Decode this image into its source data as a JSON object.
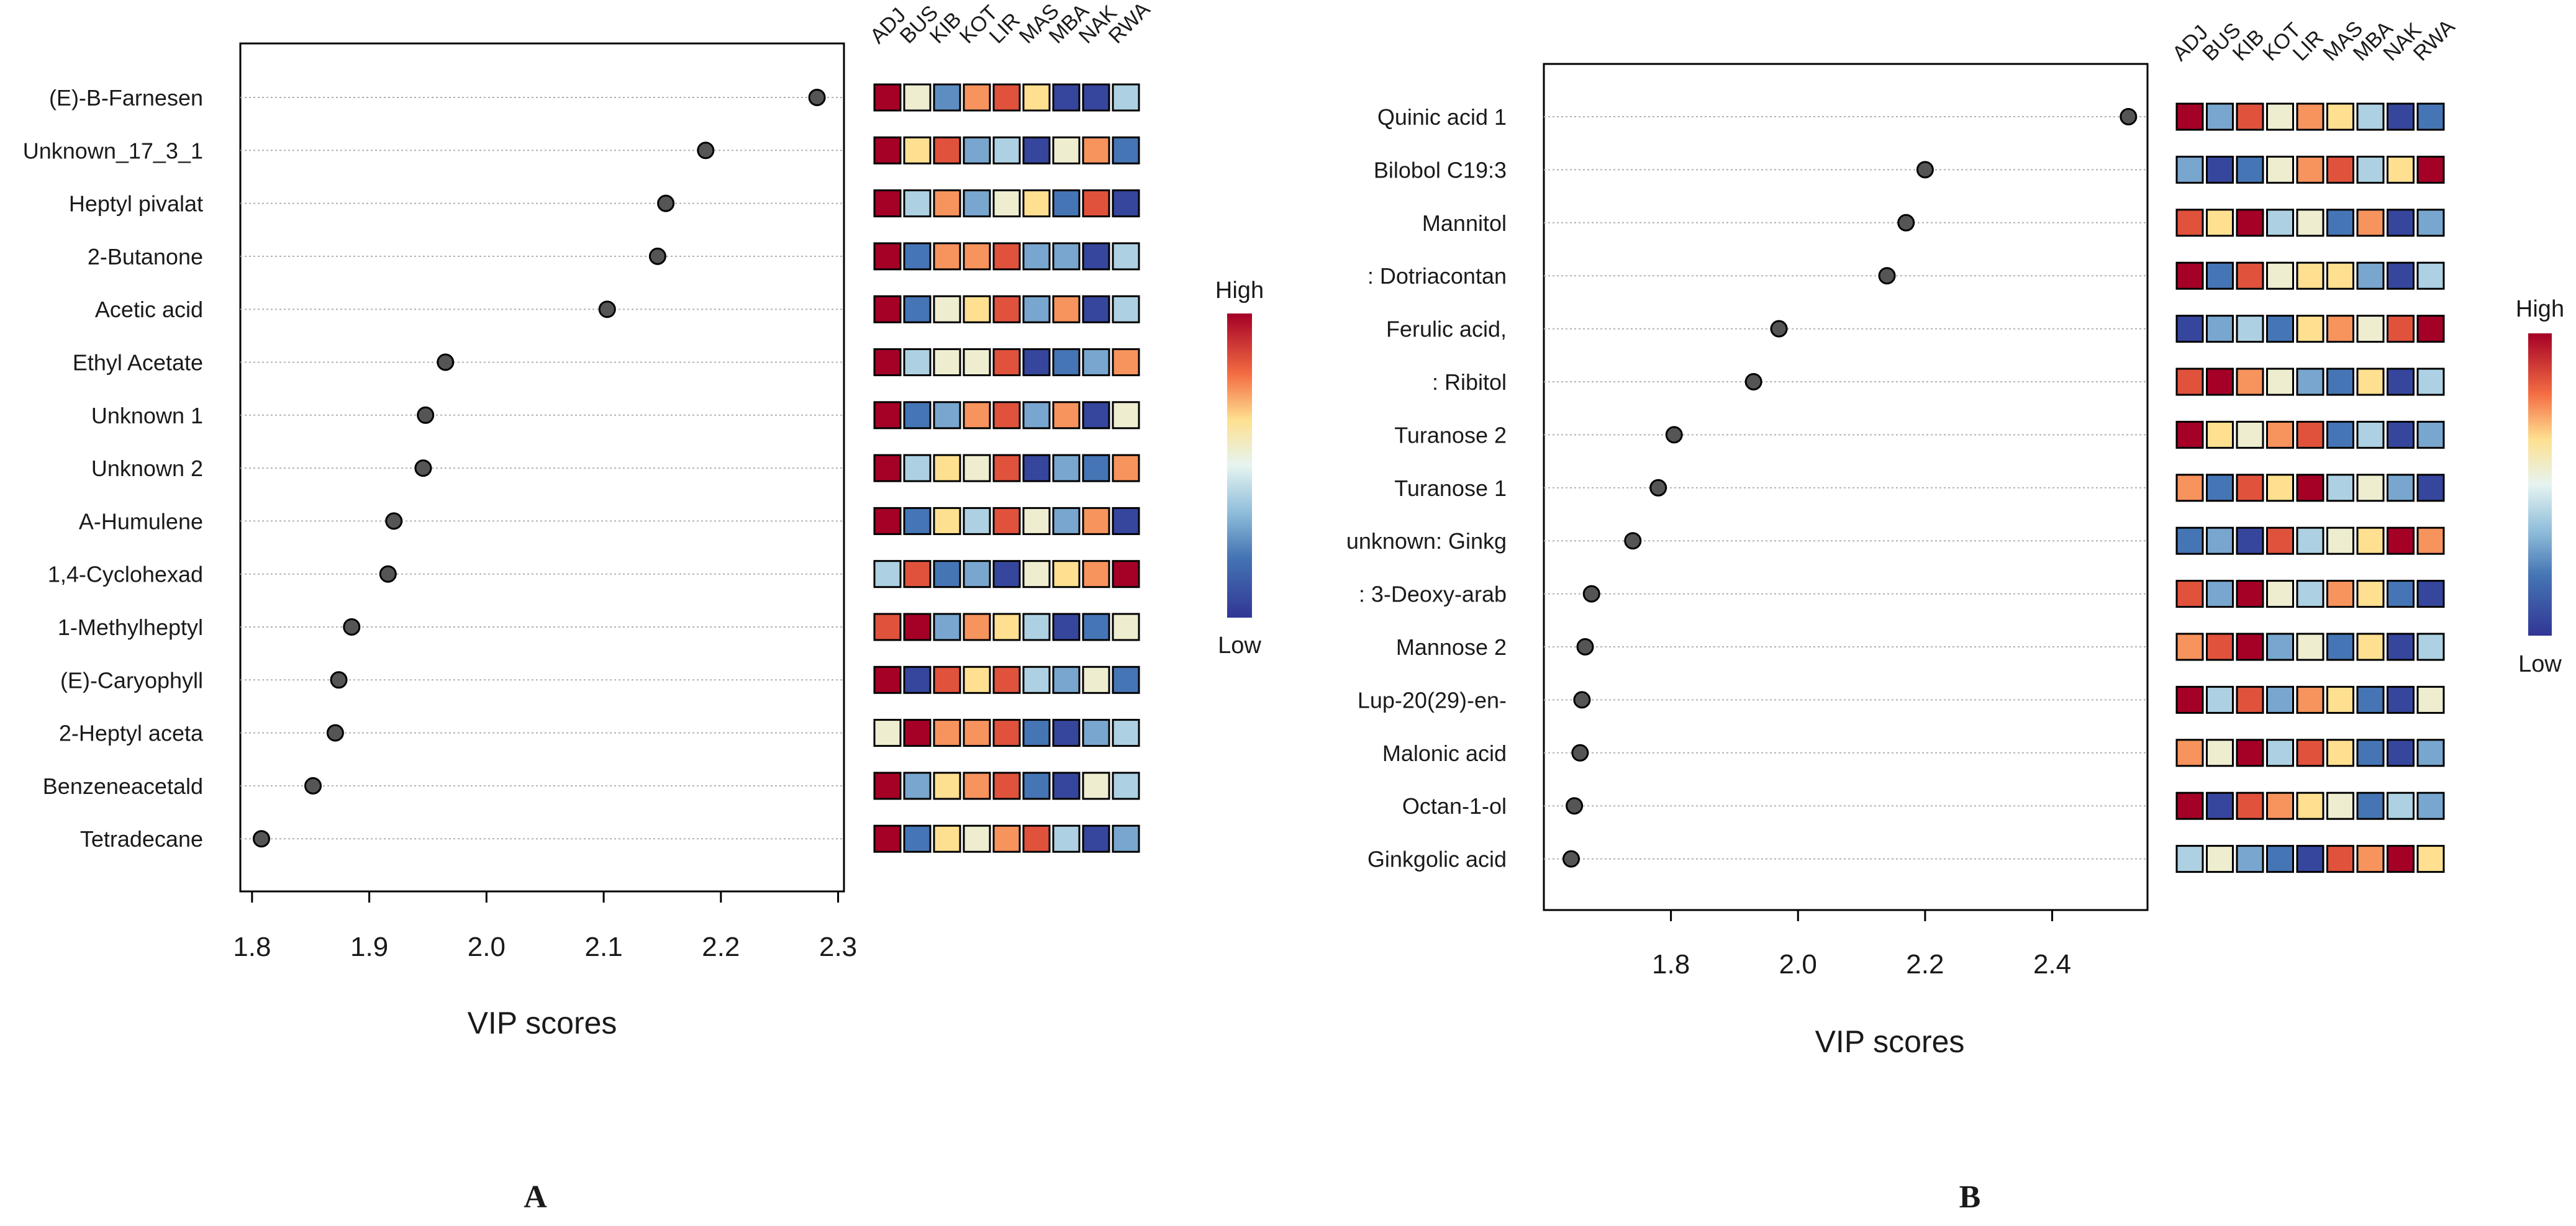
{
  "colors": {
    "high": "#a50026",
    "mid": "#eee8c8",
    "low": "#313695",
    "dot": "#555555",
    "gridline": "#b0b0b0",
    "frame": "#000000"
  },
  "chart_data": [
    {
      "type": "scatter",
      "panel_label": "A",
      "xlabel": "VIP scores",
      "ylabel": "",
      "xlim": [
        1.79,
        2.305
      ],
      "xticks": [
        1.8,
        1.9,
        2.0,
        2.1,
        2.2,
        2.3
      ],
      "xtick_labels": [
        "1.8",
        "1.9",
        "2.0",
        "2.1",
        "2.2",
        "2.3"
      ],
      "grid": "horizontal dotted",
      "categories": [
        "(E)-B-Farnesen",
        "Unknown_17_3_1",
        "Heptyl pivalat",
        "2-Butanone",
        "Acetic acid",
        "Ethyl Acetate",
        "Unknown 1",
        "Unknown 2",
        "A-Humulene",
        "1,4-Cyclohexad",
        "1-Methylheptyl",
        "(E)-Caryophyll",
        "2-Heptyl aceta",
        "Benzeneacetald",
        "Tetradecane"
      ],
      "values": [
        2.282,
        2.187,
        2.153,
        2.146,
        2.103,
        1.965,
        1.948,
        1.946,
        1.921,
        1.916,
        1.885,
        1.874,
        1.871,
        1.852,
        1.808
      ],
      "heatmap": {
        "columns": [
          "ADJ",
          "BUS",
          "KIB",
          "KOT",
          "LIR",
          "MAS",
          "MBA",
          "NAK",
          "RWA"
        ],
        "matrix": [
          [
            1.0,
            0.55,
            0.25,
            0.75,
            0.85,
            0.65,
            0.05,
            0.05,
            0.4
          ],
          [
            1.0,
            0.65,
            0.85,
            0.3,
            0.4,
            0.05,
            0.55,
            0.75,
            0.2
          ],
          [
            1.0,
            0.4,
            0.75,
            0.3,
            0.55,
            0.65,
            0.2,
            0.85,
            0.05
          ],
          [
            1.0,
            0.2,
            0.75,
            0.75,
            0.85,
            0.3,
            0.3,
            0.05,
            0.4
          ],
          [
            1.0,
            0.2,
            0.55,
            0.65,
            0.85,
            0.3,
            0.75,
            0.05,
            0.4
          ],
          [
            1.0,
            0.4,
            0.55,
            0.55,
            0.85,
            0.05,
            0.2,
            0.3,
            0.75
          ],
          [
            1.0,
            0.2,
            0.3,
            0.75,
            0.85,
            0.3,
            0.75,
            0.05,
            0.55
          ],
          [
            1.0,
            0.4,
            0.65,
            0.55,
            0.85,
            0.05,
            0.3,
            0.2,
            0.75
          ],
          [
            1.0,
            0.2,
            0.65,
            0.4,
            0.85,
            0.55,
            0.3,
            0.75,
            0.05
          ],
          [
            0.4,
            0.85,
            0.2,
            0.3,
            0.05,
            0.55,
            0.65,
            0.75,
            1.0
          ],
          [
            0.85,
            1.0,
            0.3,
            0.75,
            0.65,
            0.4,
            0.05,
            0.2,
            0.55
          ],
          [
            1.0,
            0.05,
            0.85,
            0.65,
            0.85,
            0.4,
            0.3,
            0.55,
            0.2
          ],
          [
            0.55,
            1.0,
            0.75,
            0.75,
            0.85,
            0.2,
            0.05,
            0.3,
            0.4
          ],
          [
            1.0,
            0.3,
            0.65,
            0.75,
            0.85,
            0.2,
            0.05,
            0.55,
            0.4
          ],
          [
            1.0,
            0.2,
            0.65,
            0.55,
            0.75,
            0.85,
            0.4,
            0.05,
            0.3
          ]
        ]
      },
      "legend": {
        "high_label": "High",
        "low_label": "Low",
        "placement": "right"
      }
    },
    {
      "type": "scatter",
      "panel_label": "B",
      "xlabel": "VIP scores",
      "ylabel": "",
      "xlim": [
        1.6,
        2.55
      ],
      "xticks": [
        1.8,
        2.0,
        2.2,
        2.4
      ],
      "xtick_labels": [
        "1.8",
        "2.0",
        "2.2",
        "2.4"
      ],
      "grid": "horizontal dotted",
      "categories": [
        "Quinic acid 1",
        "Bilobol C19:3",
        "Mannitol",
        ": Dotriacontan",
        "Ferulic acid,",
        ": Ribitol",
        "Turanose 2",
        "Turanose 1",
        "unknown: Ginkg",
        ": 3-Deoxy-arab",
        "Mannose 2",
        "Lup-20(29)-en-",
        "Malonic acid",
        "Octan-1-ol",
        "Ginkgolic acid"
      ],
      "values": [
        2.52,
        2.2,
        2.17,
        2.14,
        1.97,
        1.93,
        1.805,
        1.78,
        1.74,
        1.675,
        1.665,
        1.66,
        1.657,
        1.648,
        1.643
      ],
      "heatmap": {
        "columns": [
          "ADJ",
          "BUS",
          "KIB",
          "KOT",
          "LIR",
          "MAS",
          "MBA",
          "NAK",
          "RWA"
        ],
        "matrix": [
          [
            1.0,
            0.3,
            0.85,
            0.55,
            0.75,
            0.65,
            0.4,
            0.05,
            0.2
          ],
          [
            0.3,
            0.05,
            0.2,
            0.55,
            0.75,
            0.85,
            0.4,
            0.65,
            1.0
          ],
          [
            0.85,
            0.65,
            1.0,
            0.4,
            0.55,
            0.2,
            0.75,
            0.05,
            0.3
          ],
          [
            1.0,
            0.2,
            0.85,
            0.55,
            0.65,
            0.65,
            0.3,
            0.05,
            0.4
          ],
          [
            0.05,
            0.3,
            0.4,
            0.2,
            0.65,
            0.75,
            0.55,
            0.85,
            1.0
          ],
          [
            0.85,
            1.0,
            0.75,
            0.55,
            0.3,
            0.2,
            0.65,
            0.05,
            0.4
          ],
          [
            1.0,
            0.65,
            0.55,
            0.75,
            0.85,
            0.2,
            0.4,
            0.05,
            0.3
          ],
          [
            0.75,
            0.2,
            0.85,
            0.65,
            1.0,
            0.4,
            0.55,
            0.3,
            0.05
          ],
          [
            0.2,
            0.3,
            0.05,
            0.85,
            0.4,
            0.55,
            0.65,
            1.0,
            0.75
          ],
          [
            0.85,
            0.3,
            1.0,
            0.55,
            0.4,
            0.75,
            0.65,
            0.2,
            0.05
          ],
          [
            0.75,
            0.85,
            1.0,
            0.3,
            0.55,
            0.2,
            0.65,
            0.05,
            0.4
          ],
          [
            1.0,
            0.4,
            0.85,
            0.3,
            0.75,
            0.65,
            0.2,
            0.05,
            0.55
          ],
          [
            0.75,
            0.55,
            1.0,
            0.4,
            0.85,
            0.65,
            0.2,
            0.05,
            0.3
          ],
          [
            1.0,
            0.05,
            0.85,
            0.75,
            0.65,
            0.55,
            0.2,
            0.4,
            0.3
          ],
          [
            0.4,
            0.55,
            0.3,
            0.2,
            0.05,
            0.85,
            0.75,
            1.0,
            0.65
          ]
        ]
      },
      "legend": {
        "high_label": "High",
        "low_label": "Low",
        "placement": "right"
      }
    }
  ]
}
